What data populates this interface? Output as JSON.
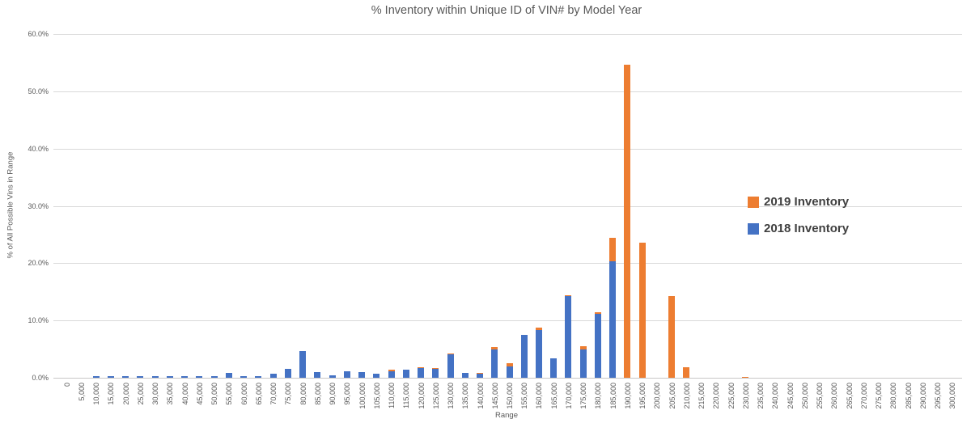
{
  "chart_data": {
    "type": "bar",
    "bar_style": "overlapped-columns",
    "title": "% Inventory within Unique ID of VIN# by Model Year",
    "xlabel": "Range",
    "ylabel": "% of All Possible Vins in Range",
    "ylim": [
      0,
      60
    ],
    "grid": true,
    "legend_position": "right",
    "ytick_labels": [
      "0.0%",
      "10.0%",
      "20.0%",
      "30.0%",
      "40.0%",
      "50.0%",
      "60.0%"
    ],
    "categories": [
      "0",
      "5,000",
      "10,000",
      "15,000",
      "20,000",
      "25,000",
      "30,000",
      "35,000",
      "40,000",
      "45,000",
      "50,000",
      "55,000",
      "60,000",
      "65,000",
      "70,000",
      "75,000",
      "80,000",
      "85,000",
      "90,000",
      "95,000",
      "100,000",
      "105,000",
      "110,000",
      "115,000",
      "120,000",
      "125,000",
      "130,000",
      "135,000",
      "140,000",
      "145,000",
      "150,000",
      "155,000",
      "160,000",
      "165,000",
      "170,000",
      "175,000",
      "180,000",
      "185,000",
      "190,000",
      "195,000",
      "200,000",
      "205,000",
      "210,000",
      "215,000",
      "220,000",
      "225,000",
      "230,000",
      "235,000",
      "240,000",
      "245,000",
      "250,000",
      "255,000",
      "260,000",
      "265,000",
      "270,000",
      "275,000",
      "280,000",
      "285,000",
      "290,000",
      "295,000",
      "300,000"
    ],
    "series": [
      {
        "name": "2019 Inventory",
        "color": "#ED7D31",
        "values": [
          0,
          0,
          0,
          0,
          0,
          0,
          0,
          0,
          0,
          0,
          0,
          0,
          0,
          0,
          0,
          0,
          0,
          0,
          0,
          0,
          0,
          0,
          1.4,
          0,
          1.9,
          1.75,
          4.3,
          0,
          0.9,
          5.3,
          2.6,
          0,
          8.7,
          0,
          14.4,
          5.5,
          11.4,
          24.4,
          54.6,
          23.6,
          0,
          14.3,
          1.85,
          0,
          0,
          0,
          0.2,
          0,
          0,
          0,
          0,
          0,
          0,
          0,
          0,
          0,
          0,
          0,
          0,
          0,
          0
        ]
      },
      {
        "name": "2018 Inventory",
        "color": "#4472C4",
        "values": [
          0,
          0,
          0.3,
          0.3,
          0.3,
          0.3,
          0.3,
          0.3,
          0.3,
          0.35,
          0.3,
          0.85,
          0.35,
          0.3,
          0.65,
          1.6,
          4.6,
          1.0,
          0.45,
          1.15,
          1.05,
          0.7,
          1.1,
          1.4,
          1.7,
          1.6,
          4.1,
          0.9,
          0.65,
          4.9,
          2.0,
          7.5,
          8.4,
          3.4,
          14.2,
          5.0,
          11.2,
          20.3,
          0,
          0,
          0,
          0,
          0,
          0,
          0,
          0,
          0,
          0,
          0,
          0,
          0,
          0,
          0,
          0,
          0,
          0,
          0,
          0,
          0,
          0,
          0
        ]
      }
    ]
  }
}
